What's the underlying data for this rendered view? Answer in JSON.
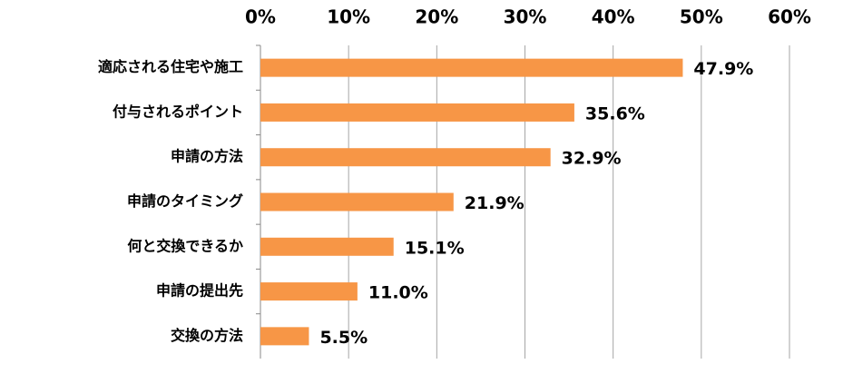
{
  "chart_data": {
    "type": "bar",
    "orientation": "horizontal",
    "categories": [
      "適応される住宅や施工",
      "付与されるポイント",
      "申請の方法",
      "申請のタイミング",
      "何と交換できるか",
      "申請の提出先",
      "交換の方法"
    ],
    "values": [
      47.9,
      35.6,
      32.9,
      21.9,
      15.1,
      11.0,
      5.5
    ],
    "value_labels": [
      "47.9%",
      "35.6%",
      "32.9%",
      "21.9%",
      "15.1%",
      "11.0%",
      "5.5%"
    ],
    "color": "#f79646",
    "xlim": [
      0,
      60
    ],
    "xticks": [
      {
        "value": 0,
        "label": "0%"
      },
      {
        "value": 10,
        "label": "10%"
      },
      {
        "value": 20,
        "label": "20%"
      },
      {
        "value": 30,
        "label": "30%"
      },
      {
        "value": 40,
        "label": "40%"
      },
      {
        "value": 50,
        "label": "50%"
      },
      {
        "value": 60,
        "label": "60%"
      }
    ],
    "grid": true
  }
}
